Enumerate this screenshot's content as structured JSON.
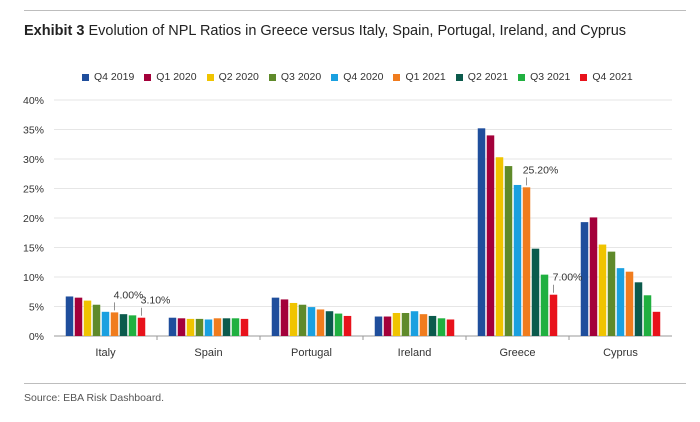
{
  "title_bold": "Exhibit 3",
  "title_rest": "Evolution of NPL Ratios in Greece versus Italy, Spain, Portugal, Ireland, and Cyprus",
  "source": "Source: EBA Risk Dashboard.",
  "chart_data": {
    "type": "bar",
    "categories": [
      "Italy",
      "Spain",
      "Portugal",
      "Ireland",
      "Greece",
      "Cyprus"
    ],
    "ylim": [
      0,
      40
    ],
    "yticks": [
      "0%",
      "5%",
      "10%",
      "15%",
      "20%",
      "25%",
      "30%",
      "35%",
      "40%"
    ],
    "grid": true,
    "legend_position": "top",
    "series": [
      {
        "name": "Q4 2019",
        "color": "#1f4e9c",
        "values": [
          6.7,
          3.1,
          6.5,
          3.3,
          35.2,
          19.3
        ]
      },
      {
        "name": "Q1 2020",
        "color": "#a3003a",
        "values": [
          6.5,
          3.0,
          6.2,
          3.3,
          34.0,
          20.1
        ]
      },
      {
        "name": "Q2 2020",
        "color": "#f0c400",
        "values": [
          6.0,
          2.9,
          5.6,
          3.9,
          30.3,
          15.5
        ]
      },
      {
        "name": "Q3 2020",
        "color": "#5f8a2a",
        "values": [
          5.3,
          2.9,
          5.3,
          3.9,
          28.8,
          14.3
        ]
      },
      {
        "name": "Q4 2020",
        "color": "#1aa0e0",
        "values": [
          4.1,
          2.8,
          4.9,
          4.2,
          25.6,
          11.5
        ]
      },
      {
        "name": "Q1 2021",
        "color": "#f07c1e",
        "values": [
          4.0,
          3.0,
          4.5,
          3.7,
          25.2,
          10.9
        ]
      },
      {
        "name": "Q2 2021",
        "color": "#0b5a4c",
        "values": [
          3.7,
          3.0,
          4.2,
          3.4,
          14.8,
          9.1
        ]
      },
      {
        "name": "Q3 2021",
        "color": "#20b040",
        "values": [
          3.5,
          3.0,
          3.8,
          3.0,
          10.4,
          6.9
        ]
      },
      {
        "name": "Q4 2021",
        "color": "#e8121b",
        "values": [
          3.1,
          2.9,
          3.4,
          2.8,
          7.0,
          4.1
        ]
      }
    ],
    "annotations": [
      {
        "text": "4.00%",
        "category": "Italy",
        "series": "Q1 2021"
      },
      {
        "text": "3.10%",
        "category": "Italy",
        "series": "Q4 2021"
      },
      {
        "text": "25.20%",
        "category": "Greece",
        "series": "Q1 2021"
      },
      {
        "text": "7.00%",
        "category": "Greece",
        "series": "Q4 2021"
      }
    ]
  }
}
